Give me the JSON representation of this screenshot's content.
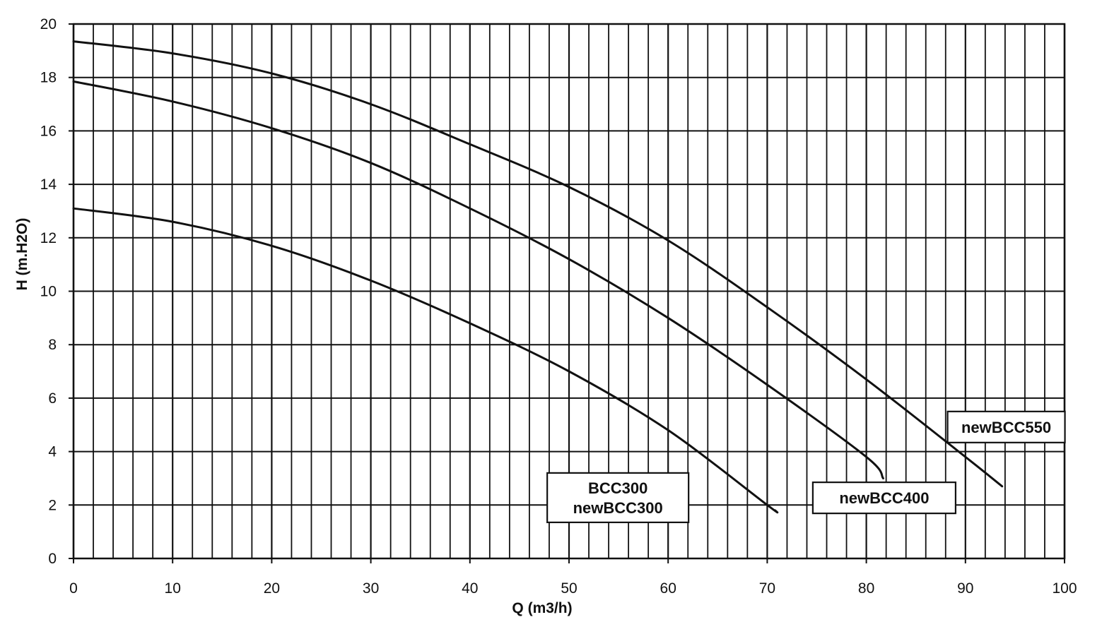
{
  "chart_data": {
    "type": "line",
    "title": "",
    "xlabel": "Q (m3/h)",
    "ylabel": "H (m.H2O)",
    "xlim": [
      0,
      100
    ],
    "ylim": [
      0,
      20
    ],
    "x_ticks": [
      "0",
      "10",
      "20",
      "30",
      "40",
      "50",
      "60",
      "70",
      "80",
      "90",
      "100"
    ],
    "y_ticks": [
      "0",
      "2",
      "4",
      "6",
      "8",
      "10",
      "12",
      "14",
      "16",
      "18",
      "20"
    ],
    "grid": {
      "major_x_step": 10,
      "minor_x_step": 2,
      "y_step": 2
    },
    "series": [
      {
        "name": "newBCC550",
        "label_lines": [
          "newBCC550"
        ],
        "points": [
          [
            0,
            19.35
          ],
          [
            10,
            18.9
          ],
          [
            20,
            18.15
          ],
          [
            30,
            17.0
          ],
          [
            40,
            15.5
          ],
          [
            50,
            13.9
          ],
          [
            60,
            11.9
          ],
          [
            70,
            9.4
          ],
          [
            80,
            6.7
          ],
          [
            90,
            3.8
          ],
          [
            93.7,
            2.7
          ]
        ]
      },
      {
        "name": "newBCC400",
        "label_lines": [
          "newBCC400"
        ],
        "points": [
          [
            0,
            17.85
          ],
          [
            10,
            17.1
          ],
          [
            20,
            16.1
          ],
          [
            30,
            14.8
          ],
          [
            40,
            13.1
          ],
          [
            50,
            11.2
          ],
          [
            60,
            9.0
          ],
          [
            70,
            6.5
          ],
          [
            80,
            3.8
          ],
          [
            81.7,
            3.0
          ]
        ]
      },
      {
        "name": "BCC300 newBCC300",
        "label_lines": [
          "BCC300",
          "newBCC300"
        ],
        "points": [
          [
            0,
            13.1
          ],
          [
            10,
            12.6
          ],
          [
            20,
            11.7
          ],
          [
            30,
            10.4
          ],
          [
            40,
            8.8
          ],
          [
            50,
            7.0
          ],
          [
            60,
            4.8
          ],
          [
            70,
            2.0
          ],
          [
            70.8,
            1.8
          ]
        ]
      }
    ]
  }
}
